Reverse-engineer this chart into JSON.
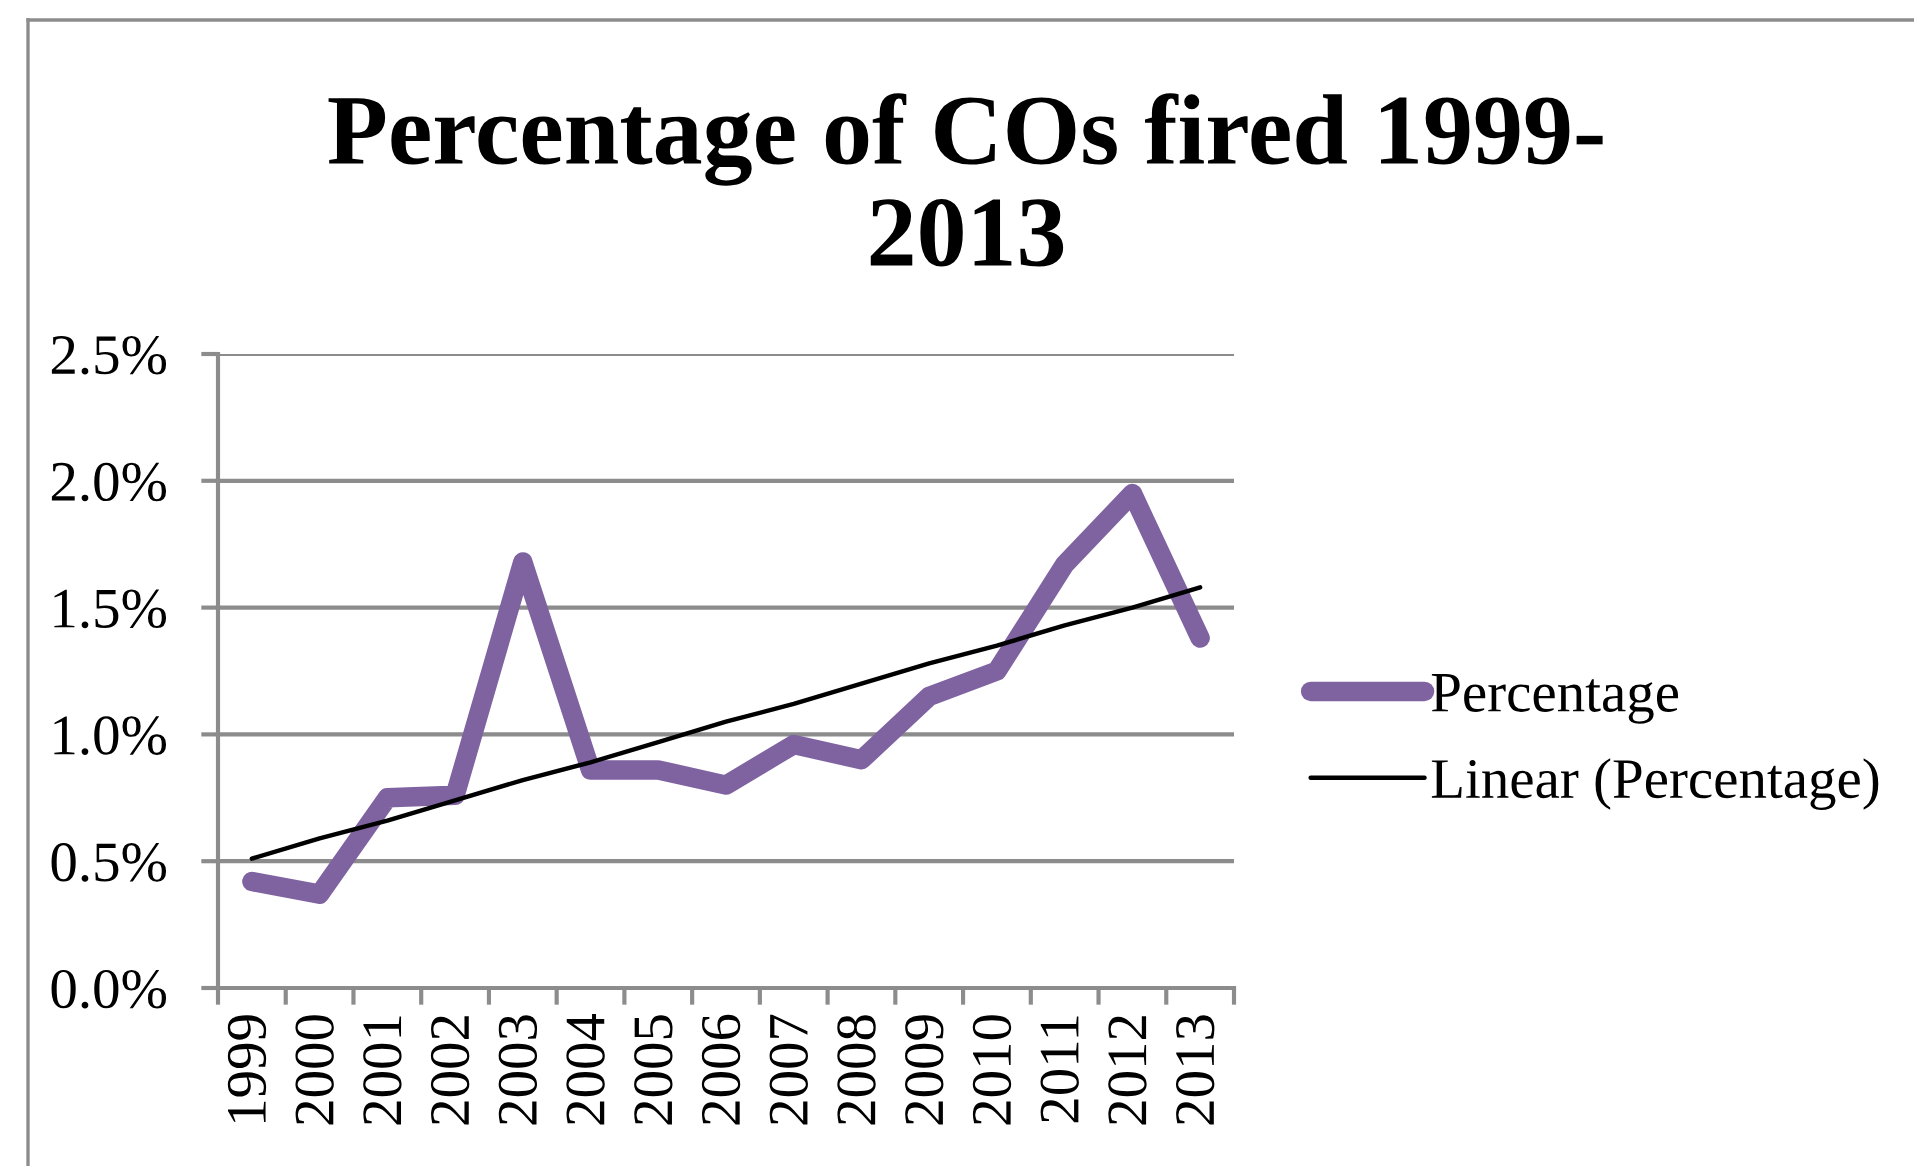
{
  "chart_data": {
    "type": "line",
    "title": "Percentage of COs fired 1999-\n2013",
    "categories": [
      "1999",
      "2000",
      "2001",
      "2002",
      "2003",
      "2004",
      "2005",
      "2006",
      "2007",
      "2008",
      "2009",
      "2010",
      "2011",
      "2012",
      "2013"
    ],
    "series": [
      {
        "name": "Percentage",
        "color": "#7f63a1",
        "values": [
          0.42,
          0.37,
          0.75,
          0.76,
          1.68,
          0.86,
          0.86,
          0.8,
          0.96,
          0.9,
          1.15,
          1.25,
          1.67,
          1.95,
          1.38
        ]
      },
      {
        "name": "Linear (Percentage)",
        "color": "#000000",
        "type": "line",
        "values": [
          0.51,
          0.59,
          0.66,
          0.74,
          0.82,
          0.89,
          0.97,
          1.05,
          1.12,
          1.2,
          1.28,
          1.35,
          1.43,
          1.5,
          1.58
        ]
      }
    ],
    "ylim": [
      0,
      2.5
    ],
    "yticks": [
      {
        "value": 0,
        "label": "0.0%"
      },
      {
        "value": 0.5,
        "label": "0.5%"
      },
      {
        "value": 1.0,
        "label": "1.0%"
      },
      {
        "value": 1.5,
        "label": "1.5%"
      },
      {
        "value": 2.0,
        "label": "2.0%"
      },
      {
        "value": 2.5,
        "label": "2.5%"
      }
    ],
    "grid": "y",
    "legend": "right",
    "marker": "none",
    "line_style": "solid"
  }
}
